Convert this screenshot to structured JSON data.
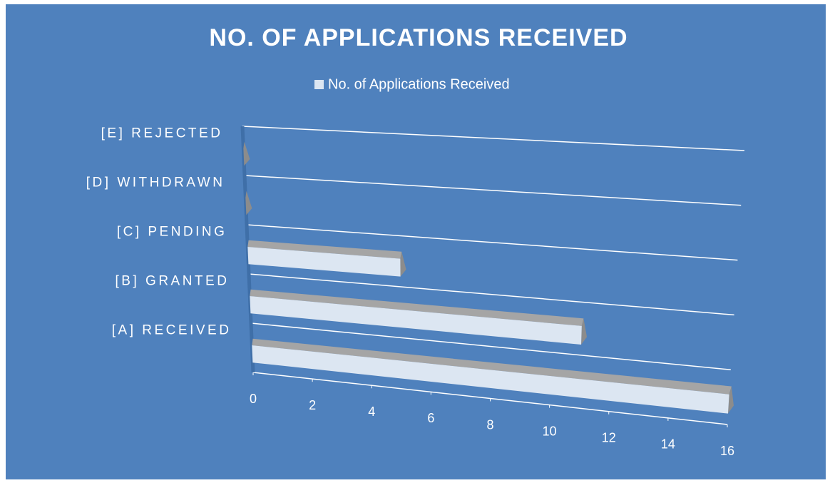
{
  "chart_data": {
    "type": "bar",
    "orientation": "horizontal",
    "title": "NO. OF APPLICATIONS RECEIVED",
    "categories": [
      "[A] RECEIVED",
      "[B] GRANTED",
      "[C] PENDING",
      "[D] WITHDRAWN",
      "[E] REJECTED"
    ],
    "series": [
      {
        "name": "No. of Applications Received",
        "color": "#dce6f2",
        "values": [
          16,
          11,
          5,
          0,
          0
        ]
      }
    ],
    "xlim": [
      0,
      16
    ],
    "xticks": [
      0,
      2,
      4,
      6,
      8,
      10,
      12,
      14,
      16
    ],
    "grid": true,
    "legend": "top"
  }
}
